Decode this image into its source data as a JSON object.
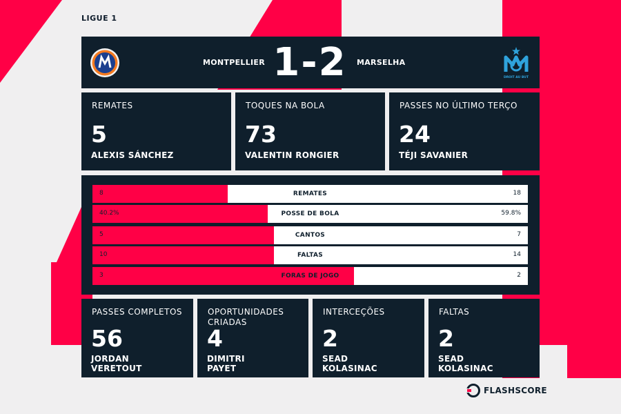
{
  "league": "LIGUE 1",
  "header": {
    "home_team": "MONTPELLIER",
    "away_team": "MARSELHA",
    "score": "1-2",
    "away_crest_motto": "DROIT AU BUT"
  },
  "top_stats": [
    {
      "label": "REMATES",
      "value": "5",
      "player": "ALEXIS SÁNCHEZ"
    },
    {
      "label": "TOQUES NA BOLA",
      "value": "73",
      "player": "VALENTIN RONGIER"
    },
    {
      "label": "PASSES NO ÚLTIMO TERÇO",
      "value": "24",
      "player": "TÉJI SAVANIER"
    }
  ],
  "comparison": [
    {
      "label": "REMATES",
      "home": "8",
      "away": "18",
      "home_share": 0.31
    },
    {
      "label": "POSSE DE BOLA",
      "home": "40.2%",
      "away": "59.8%",
      "home_share": 0.402
    },
    {
      "label": "CANTOS",
      "home": "5",
      "away": "7",
      "home_share": 0.417
    },
    {
      "label": "FALTAS",
      "home": "10",
      "away": "14",
      "home_share": 0.417
    },
    {
      "label": "FORAS DE JOGO",
      "home": "3",
      "away": "2",
      "home_share": 0.6
    }
  ],
  "bottom_stats": [
    {
      "label_1": "PASSES COMPLETOS",
      "label_2": "",
      "value": "56",
      "player_1": "JORDAN",
      "player_2": "VERETOUT"
    },
    {
      "label_1": "OPORTUNIDADES",
      "label_2": "CRIADAS",
      "value": "4",
      "player_1": "DIMITRI",
      "player_2": "PAYET"
    },
    {
      "label_1": "INTERCEÇÕES",
      "label_2": "",
      "value": "2",
      "player_1": "SEAD",
      "player_2": "KOLASINAC"
    },
    {
      "label_1": "FALTAS",
      "label_2": "",
      "value": "2",
      "player_1": "SEAD",
      "player_2": "KOLASINAC"
    }
  ],
  "brand": {
    "name": "FLASHSCORE"
  },
  "colors": {
    "accent": "#ff0046",
    "panel": "#0f1f2c",
    "background": "#f0eff0"
  }
}
